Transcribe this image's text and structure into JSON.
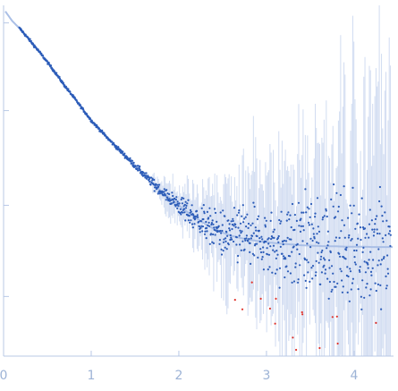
{
  "chart_data": {
    "type": "scatter",
    "title": "",
    "xlabel": "",
    "ylabel": "",
    "xlim": [
      0,
      4.45
    ],
    "ylim": [
      0,
      1
    ],
    "x_ticks": [
      "0",
      "1",
      "2",
      "3",
      "4"
    ],
    "y_tick_count": 4,
    "y_tick_values": [
      0.17,
      0.43,
      0.7,
      0.95
    ],
    "grid": false,
    "legend": "none",
    "colors": {
      "points": "#2c5cb8",
      "outliers": "#e0322a",
      "error_bars": "#c9d6ef",
      "fit_curve": "#aabfe6",
      "axis": "#b8c8e6",
      "tick_labels": "#9db3d6"
    },
    "series": [
      {
        "x": [
          0.1,
          0.2,
          0.3,
          0.4,
          0.5,
          0.6,
          0.7,
          0.8,
          0.9,
          1.0,
          1.1,
          1.2,
          1.3,
          1.4,
          1.5,
          1.6,
          1.7,
          1.8,
          1.9,
          2.0,
          2.1,
          2.2,
          2.3,
          2.4,
          2.5,
          2.6,
          2.7,
          2.8,
          2.9,
          3.0,
          3.1,
          3.2,
          3.3,
          3.4,
          3.5,
          3.6,
          3.7,
          3.8,
          3.9,
          4.0,
          4.1,
          4.2,
          4.3,
          4.4
        ],
        "y": [
          0.955,
          0.93,
          0.9,
          0.87,
          0.838,
          0.805,
          0.77,
          0.738,
          0.705,
          0.672,
          0.645,
          0.618,
          0.593,
          0.568,
          0.543,
          0.518,
          0.493,
          0.47,
          0.45,
          0.43,
          0.41,
          0.393,
          0.377,
          0.363,
          0.352,
          0.343,
          0.337,
          0.332,
          0.328,
          0.325,
          0.322,
          0.32,
          0.318,
          0.316,
          0.315,
          0.314,
          0.313,
          0.313,
          0.312,
          0.312,
          0.312,
          0.311,
          0.311,
          0.311
        ],
        "err": [
          0.002,
          0.002,
          0.003,
          0.003,
          0.003,
          0.004,
          0.004,
          0.005,
          0.006,
          0.007,
          0.008,
          0.009,
          0.011,
          0.013,
          0.016,
          0.02,
          0.025,
          0.032,
          0.04,
          0.05,
          0.062,
          0.075,
          0.09,
          0.105,
          0.12,
          0.135,
          0.15,
          0.165,
          0.18,
          0.195,
          0.21,
          0.225,
          0.24,
          0.255,
          0.27,
          0.285,
          0.3,
          0.315,
          0.33,
          0.345,
          0.36,
          0.375,
          0.39,
          0.405
        ]
      }
    ]
  }
}
